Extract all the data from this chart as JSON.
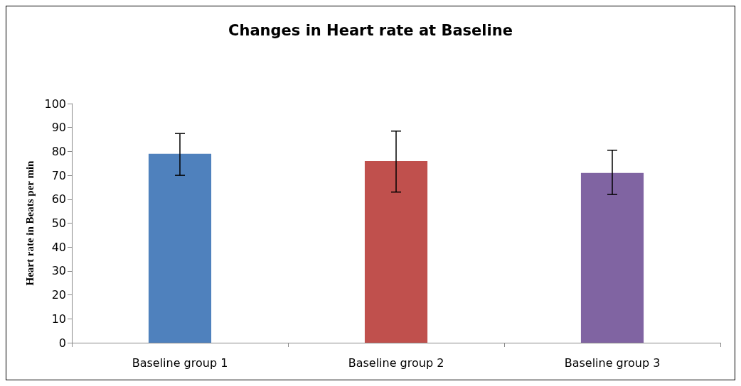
{
  "chart_data": {
    "type": "bar",
    "title": "Changes in Heart rate at Baseline",
    "ylabel": "Heart rate in Beats per min",
    "categories": [
      "Baseline group 1",
      "Baseline group 2",
      "Baseline group 3"
    ],
    "values": [
      79,
      76,
      71
    ],
    "colors": [
      "#4f81bd",
      "#c0504d",
      "#8064a2"
    ],
    "errors": [
      [
        70,
        87.5
      ],
      [
        63,
        88.5
      ],
      [
        62,
        80.5
      ]
    ],
    "ylim": [
      0,
      100
    ],
    "yticks": [
      0,
      10,
      20,
      30,
      40,
      50,
      60,
      70,
      80,
      90,
      100
    ],
    "grid": false
  }
}
